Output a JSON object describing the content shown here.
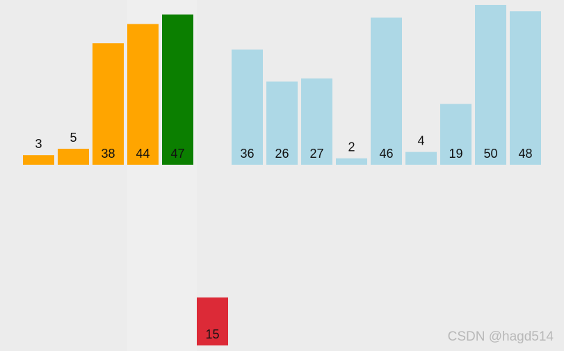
{
  "chart_data": {
    "type": "bar",
    "values": [
      3,
      5,
      38,
      44,
      47,
      15,
      36,
      26,
      27,
      2,
      46,
      4,
      19,
      50,
      48
    ],
    "colors": [
      "#ffa500",
      "#ffa500",
      "#ffa500",
      "#ffa500",
      "#0b7f00",
      "#dc2a37",
      "#add8e6",
      "#add8e6",
      "#add8e6",
      "#add8e6",
      "#add8e6",
      "#add8e6",
      "#add8e6",
      "#add8e6",
      "#add8e6"
    ],
    "active_index": 5,
    "watermark": "CSDN @hagd514"
  }
}
